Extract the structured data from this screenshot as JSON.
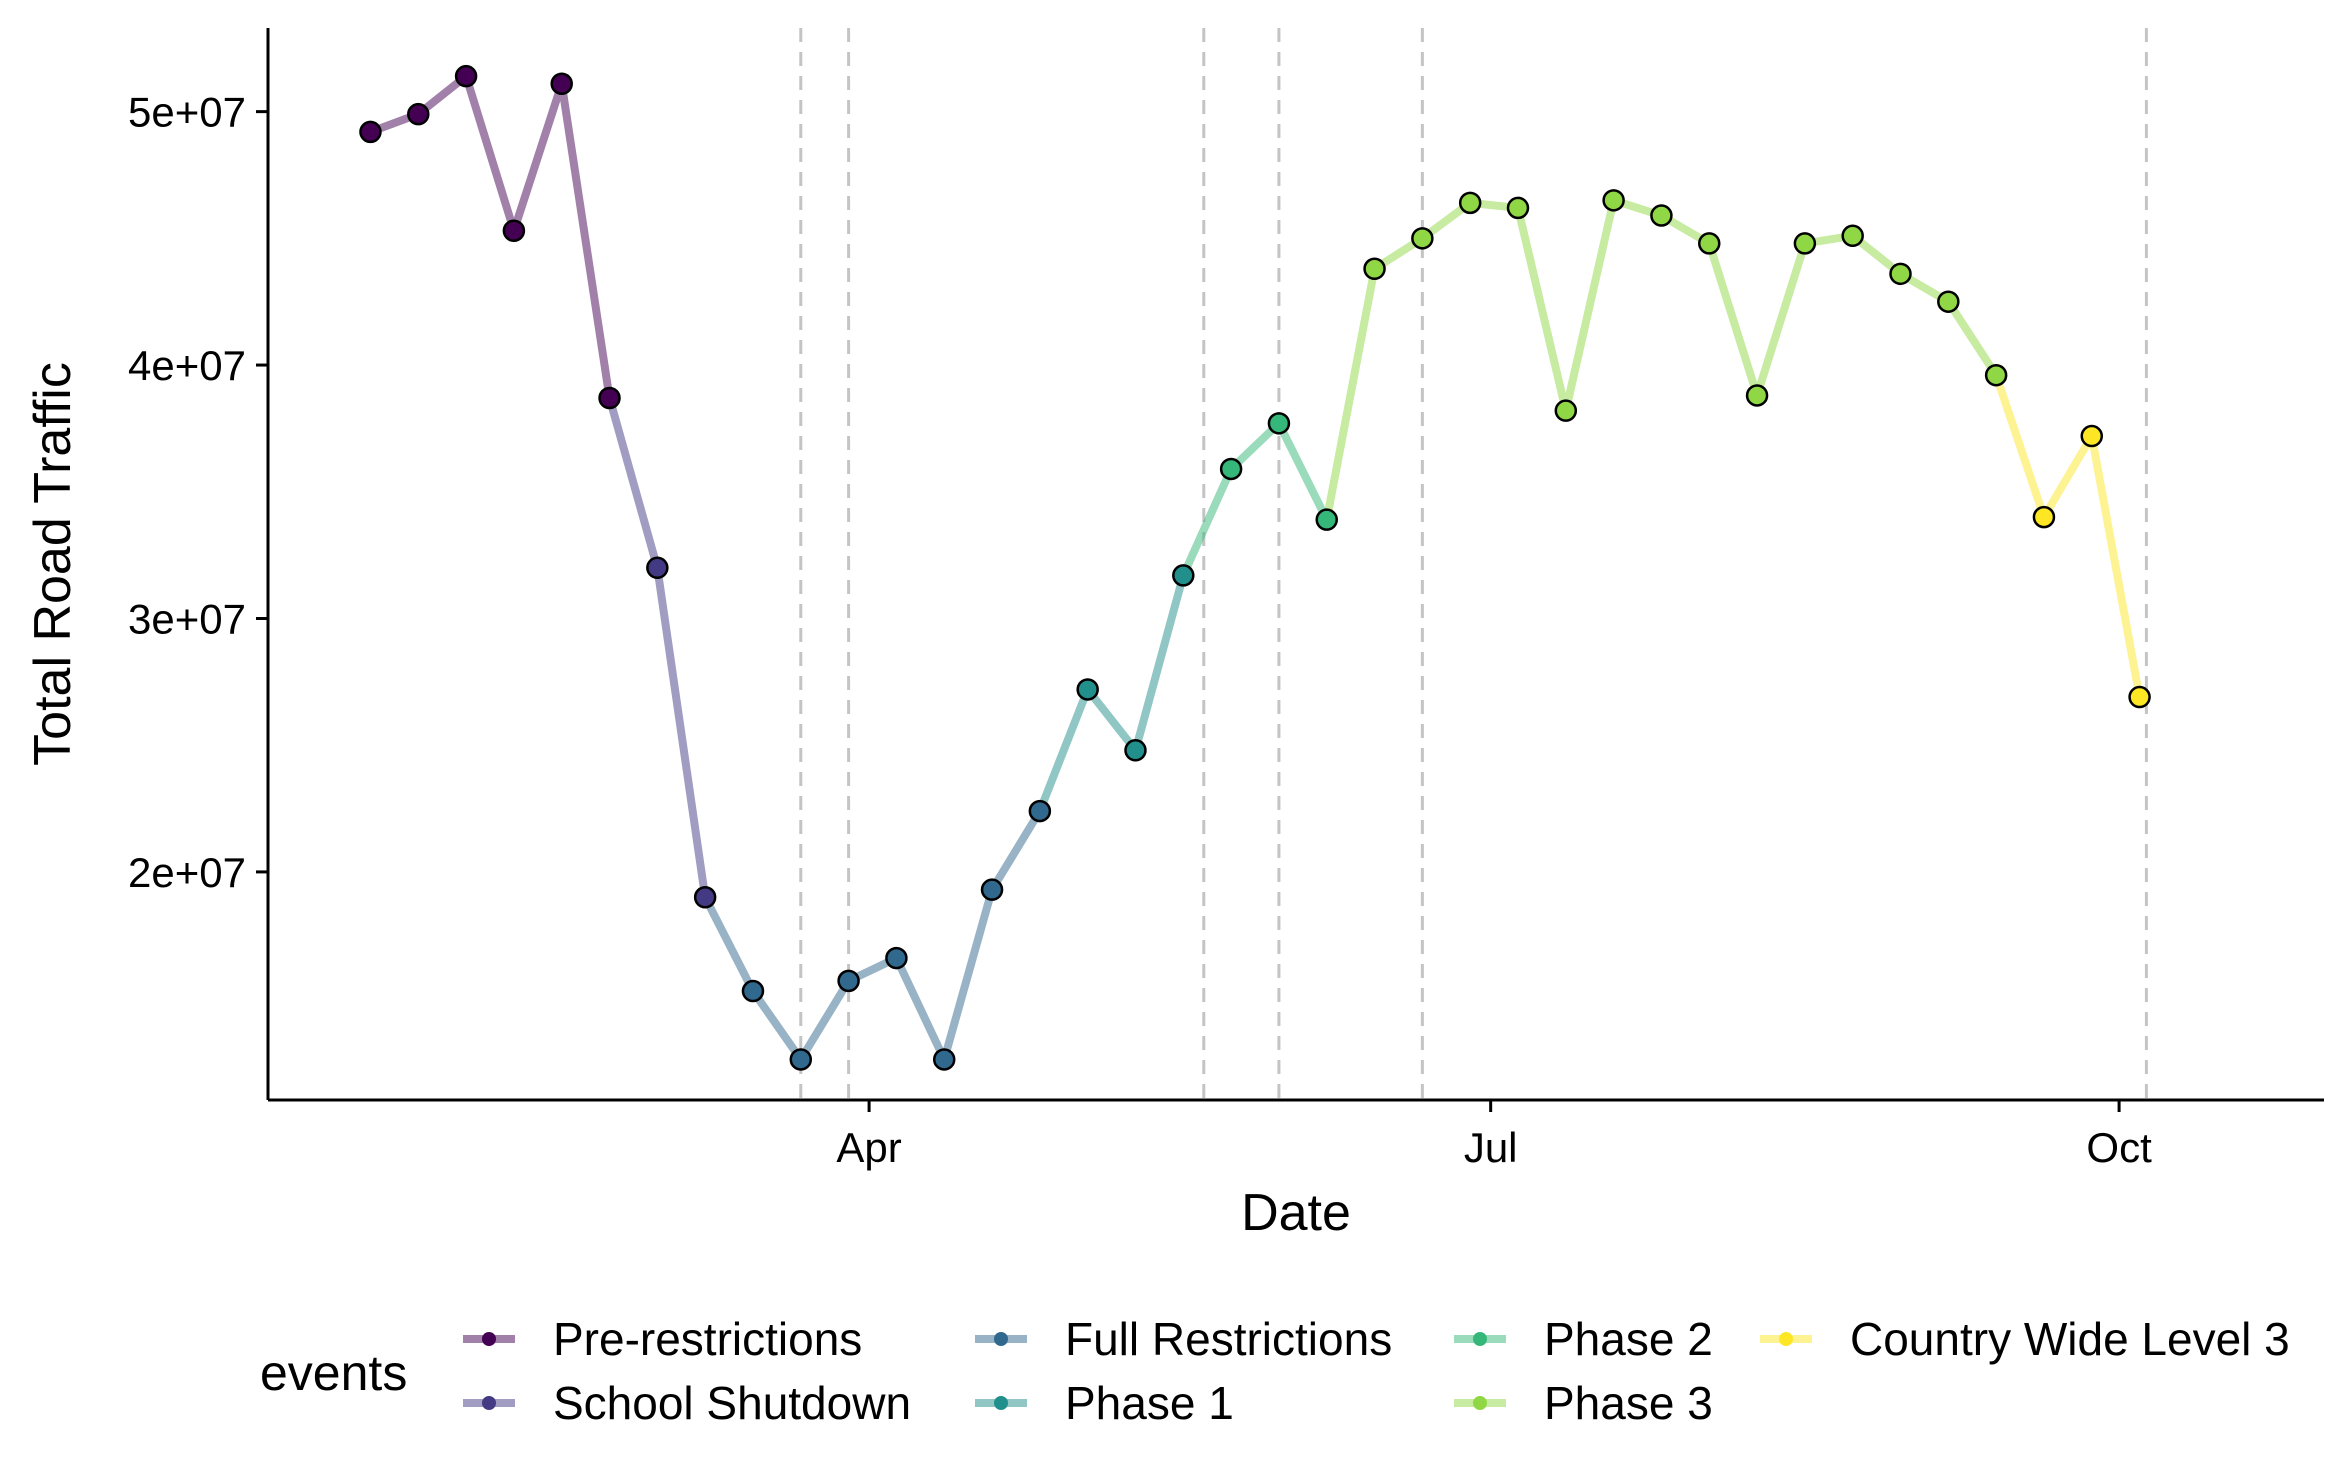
{
  "chart_data": {
    "type": "line",
    "title": "",
    "xlabel": "Date",
    "ylabel": "Total Road Traffic",
    "x_ticks": [
      {
        "label": "Apr",
        "date": "2020-04-01"
      },
      {
        "label": "Jul",
        "date": "2020-07-01"
      },
      {
        "label": "Oct",
        "date": "2020-10-01"
      }
    ],
    "y_ticks": [
      {
        "label": "2e+07",
        "value": 20000000
      },
      {
        "label": "3e+07",
        "value": 30000000
      },
      {
        "label": "4e+07",
        "value": 40000000
      },
      {
        "label": "5e+07",
        "value": 50000000
      }
    ],
    "xlim": [
      "2020-01-04",
      "2020-10-31"
    ],
    "ylim": [
      11000000,
      53300000
    ],
    "grid": false,
    "legend_title": "events",
    "legend_position": "bottom",
    "event_lines": [
      "2020-03-22",
      "2020-03-29",
      "2020-05-20",
      "2020-05-31",
      "2020-06-21",
      "2020-10-05"
    ],
    "series": [
      {
        "name": "Pre-restrictions",
        "color": "#440154",
        "points": [
          {
            "x": "2020-01-19",
            "y": 49200000
          },
          {
            "x": "2020-01-26",
            "y": 49900000
          },
          {
            "x": "2020-02-02",
            "y": 51400000
          },
          {
            "x": "2020-02-09",
            "y": 45300000
          },
          {
            "x": "2020-02-16",
            "y": 51100000
          },
          {
            "x": "2020-02-23",
            "y": 38700000
          }
        ]
      },
      {
        "name": "School Shutdown",
        "color": "#443A83",
        "points": [
          {
            "x": "2020-03-01",
            "y": 32000000
          },
          {
            "x": "2020-03-08",
            "y": 19000000
          }
        ]
      },
      {
        "name": "Full Restrictions",
        "color": "#31688E",
        "points": [
          {
            "x": "2020-03-15",
            "y": 15300000
          },
          {
            "x": "2020-03-22",
            "y": 12600000
          },
          {
            "x": "2020-03-29",
            "y": 15700000
          },
          {
            "x": "2020-04-05",
            "y": 16600000
          },
          {
            "x": "2020-04-12",
            "y": 12600000
          },
          {
            "x": "2020-04-19",
            "y": 19300000
          },
          {
            "x": "2020-04-26",
            "y": 22400000
          }
        ]
      },
      {
        "name": "Phase 1",
        "color": "#21908C",
        "points": [
          {
            "x": "2020-05-03",
            "y": 27200000
          },
          {
            "x": "2020-05-10",
            "y": 24800000
          },
          {
            "x": "2020-05-17",
            "y": 31700000
          }
        ]
      },
      {
        "name": "Phase 2",
        "color": "#35B779",
        "points": [
          {
            "x": "2020-05-24",
            "y": 35900000
          },
          {
            "x": "2020-05-31",
            "y": 37700000
          },
          {
            "x": "2020-06-07",
            "y": 33900000
          }
        ]
      },
      {
        "name": "Phase 3",
        "color": "#8FD744",
        "points": [
          {
            "x": "2020-06-14",
            "y": 43800000
          },
          {
            "x": "2020-06-21",
            "y": 45000000
          },
          {
            "x": "2020-06-28",
            "y": 46400000
          },
          {
            "x": "2020-07-05",
            "y": 46200000
          },
          {
            "x": "2020-07-12",
            "y": 38200000
          },
          {
            "x": "2020-07-19",
            "y": 46500000
          },
          {
            "x": "2020-07-26",
            "y": 45900000
          },
          {
            "x": "2020-08-02",
            "y": 44800000
          },
          {
            "x": "2020-08-09",
            "y": 38800000
          },
          {
            "x": "2020-08-16",
            "y": 44800000
          },
          {
            "x": "2020-08-23",
            "y": 45100000
          },
          {
            "x": "2020-08-30",
            "y": 43600000
          },
          {
            "x": "2020-09-06",
            "y": 42500000
          },
          {
            "x": "2020-09-13",
            "y": 39600000
          }
        ]
      },
      {
        "name": "Country Wide Level 3",
        "color": "#FDE725",
        "points": [
          {
            "x": "2020-09-20",
            "y": 34000000
          },
          {
            "x": "2020-09-27",
            "y": 37200000
          },
          {
            "x": "2020-10-04",
            "y": 26900000
          }
        ]
      }
    ]
  }
}
